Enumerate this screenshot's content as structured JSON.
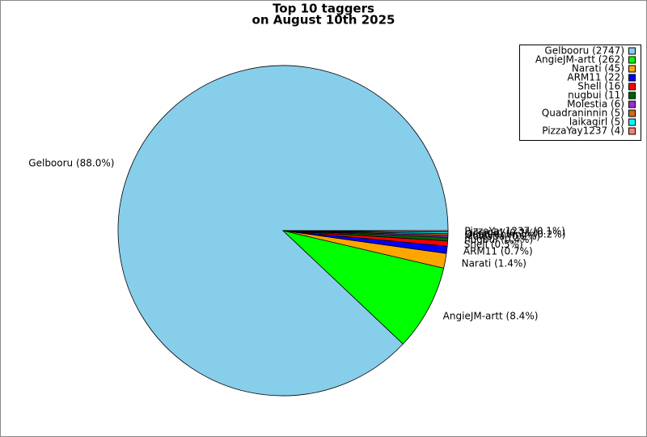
{
  "chart_data": {
    "type": "pie",
    "title": "Top 10 taggers",
    "subtitle": "on August 10th 2025",
    "values": [
      2747,
      262,
      45,
      22,
      16,
      11,
      6,
      5,
      5,
      4
    ],
    "value_labels": [
      "Gelbooru (2747)",
      "AngieJM-artt (262)",
      "Narati (45)",
      "ARM11 (22)",
      "Shell (16)",
      "nugbui (11)",
      "Molestia (6)",
      "Quadraninnin (5)",
      "laikagirl (5)",
      "PizzaYay1237 (4)"
    ],
    "slice_labels": [
      "Gelbooru (88.0%)",
      "AngieJM-artt (8.4%)",
      "Narati (1.4%)",
      "ARM11 (0.7%)",
      "Shell (0.5%)",
      "nugbui (0.4%)",
      "Molestia (0.2%)",
      "Quadraninnin (0.2%)",
      "laikagirl (0.2%)",
      "PizzaYay1237 (0.1%)"
    ],
    "colors": [
      "#87ceeb",
      "#00ff00",
      "#ffa500",
      "#0000ff",
      "#ff0000",
      "#006400",
      "#9932cc",
      "#d2691e",
      "#00ffff",
      "#fa8072"
    ],
    "legend": "upper right"
  }
}
